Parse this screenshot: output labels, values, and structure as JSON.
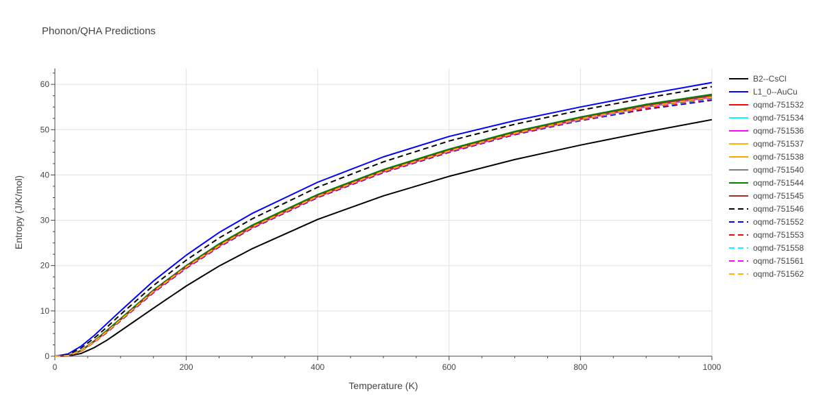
{
  "chart_data": {
    "type": "line",
    "title": "Phonon/QHA Predictions",
    "xlabel": "Temperature (K)",
    "ylabel": "Entropy (J/K/mol)",
    "xlim": [
      0,
      1000
    ],
    "ylim": [
      0,
      63.5
    ],
    "xticks": [
      0,
      200,
      400,
      600,
      800,
      1000
    ],
    "yticks": [
      0,
      10,
      20,
      30,
      40,
      50,
      60
    ],
    "grid": true,
    "legend_position": "right",
    "x": [
      0,
      20,
      40,
      60,
      80,
      100,
      150,
      200,
      250,
      300,
      400,
      500,
      600,
      700,
      800,
      900,
      1000
    ],
    "series": [
      {
        "name": "B2--CsCl",
        "color": "#000000",
        "dash": "solid",
        "values": [
          0,
          0.05,
          0.6,
          1.9,
          3.6,
          5.6,
          10.6,
          15.5,
          19.9,
          23.7,
          30.2,
          35.4,
          39.7,
          43.4,
          46.6,
          49.5,
          52.2
        ]
      },
      {
        "name": "L1_0--AuCu",
        "color": "#0000ff",
        "dash": "solid",
        "values": [
          0,
          0.5,
          2.2,
          4.6,
          7.3,
          10.0,
          16.6,
          22.3,
          27.3,
          31.5,
          38.4,
          44.0,
          48.5,
          52.0,
          55.0,
          57.8,
          60.4
        ]
      },
      {
        "name": "oqmd-751532",
        "color": "#ff0000",
        "dash": "solid",
        "values": [
          0,
          0.1,
          1.2,
          3.2,
          5.5,
          8.0,
          14.2,
          19.6,
          24.3,
          28.4,
          35.2,
          40.7,
          45.2,
          49.1,
          52.3,
          55.0,
          57.2
        ]
      },
      {
        "name": "oqmd-751534",
        "color": "#00ffff",
        "dash": "solid",
        "values": [
          0,
          0.1,
          1.2,
          3.2,
          5.5,
          8.0,
          14.3,
          19.7,
          24.4,
          28.5,
          35.3,
          40.8,
          45.3,
          49.2,
          52.4,
          55.1,
          57.3
        ]
      },
      {
        "name": "oqmd-751536",
        "color": "#ff00ff",
        "dash": "solid",
        "values": [
          0,
          0.1,
          1.2,
          3.3,
          5.6,
          8.1,
          14.3,
          19.7,
          24.4,
          28.5,
          35.3,
          40.8,
          45.3,
          49.2,
          52.4,
          55.2,
          57.4
        ]
      },
      {
        "name": "oqmd-751537",
        "color": "#ffb300",
        "dash": "solid",
        "values": [
          0,
          0.1,
          1.2,
          3.3,
          5.6,
          8.1,
          14.4,
          19.8,
          24.5,
          28.6,
          35.4,
          40.9,
          45.4,
          49.3,
          52.5,
          55.3,
          57.5
        ]
      },
      {
        "name": "oqmd-751538",
        "color": "#ffa500",
        "dash": "solid",
        "values": [
          0,
          0.1,
          1.2,
          3.3,
          5.6,
          8.1,
          14.4,
          19.8,
          24.5,
          28.6,
          35.4,
          40.9,
          45.4,
          49.3,
          52.5,
          55.3,
          57.5
        ]
      },
      {
        "name": "oqmd-751540",
        "color": "#808080",
        "dash": "solid",
        "values": [
          0,
          0.1,
          1.2,
          3.3,
          5.6,
          8.1,
          14.5,
          19.9,
          24.6,
          28.7,
          35.5,
          41.0,
          45.5,
          49.4,
          52.6,
          55.4,
          57.6
        ]
      },
      {
        "name": "oqmd-751544",
        "color": "#008000",
        "dash": "solid",
        "values": [
          0,
          0.1,
          1.3,
          3.4,
          5.8,
          8.3,
          14.6,
          20.0,
          24.8,
          28.9,
          35.7,
          41.2,
          45.7,
          49.6,
          52.8,
          55.6,
          57.8
        ]
      },
      {
        "name": "oqmd-751545",
        "color": "#a52a2a",
        "dash": "solid",
        "values": [
          0,
          0.1,
          1.2,
          3.3,
          5.6,
          8.1,
          14.4,
          19.8,
          24.5,
          28.6,
          35.4,
          40.9,
          45.4,
          49.3,
          52.5,
          55.3,
          57.5
        ]
      },
      {
        "name": "oqmd-751546",
        "color": "#000000",
        "dash": "dash",
        "values": [
          0,
          0.3,
          1.8,
          4.0,
          6.5,
          9.2,
          15.6,
          21.2,
          26.1,
          30.3,
          37.3,
          42.9,
          47.5,
          51.2,
          54.3,
          57.0,
          59.5
        ]
      },
      {
        "name": "oqmd-751552",
        "color": "#0000ff",
        "dash": "dash",
        "values": [
          0,
          0.1,
          1.1,
          3.1,
          5.3,
          7.8,
          14.0,
          19.4,
          24.1,
          28.2,
          35.0,
          40.5,
          45.0,
          48.9,
          52.0,
          54.5,
          56.5
        ]
      },
      {
        "name": "oqmd-751553",
        "color": "#ff0000",
        "dash": "dash",
        "values": [
          0,
          0.1,
          1.1,
          3.1,
          5.4,
          7.9,
          14.1,
          19.5,
          24.2,
          28.3,
          35.1,
          40.6,
          45.1,
          49.0,
          52.1,
          54.7,
          56.7
        ]
      },
      {
        "name": "oqmd-751558",
        "color": "#00ffff",
        "dash": "dash",
        "values": [
          0,
          0.1,
          1.2,
          3.2,
          5.5,
          8.0,
          14.2,
          19.6,
          24.3,
          28.4,
          35.2,
          40.7,
          45.2,
          49.1,
          52.2,
          54.9,
          56.9
        ]
      },
      {
        "name": "oqmd-751561",
        "color": "#ff00ff",
        "dash": "dash",
        "values": [
          0,
          0.1,
          1.2,
          3.2,
          5.5,
          8.0,
          14.2,
          19.6,
          24.3,
          28.4,
          35.2,
          40.7,
          45.2,
          49.1,
          52.3,
          55.0,
          57.0
        ]
      },
      {
        "name": "oqmd-751562",
        "color": "#ffb300",
        "dash": "dash",
        "values": [
          0,
          0.1,
          1.2,
          3.2,
          5.5,
          8.0,
          14.3,
          19.7,
          24.4,
          28.5,
          35.3,
          40.8,
          45.3,
          49.2,
          52.4,
          55.1,
          57.2
        ]
      }
    ]
  }
}
